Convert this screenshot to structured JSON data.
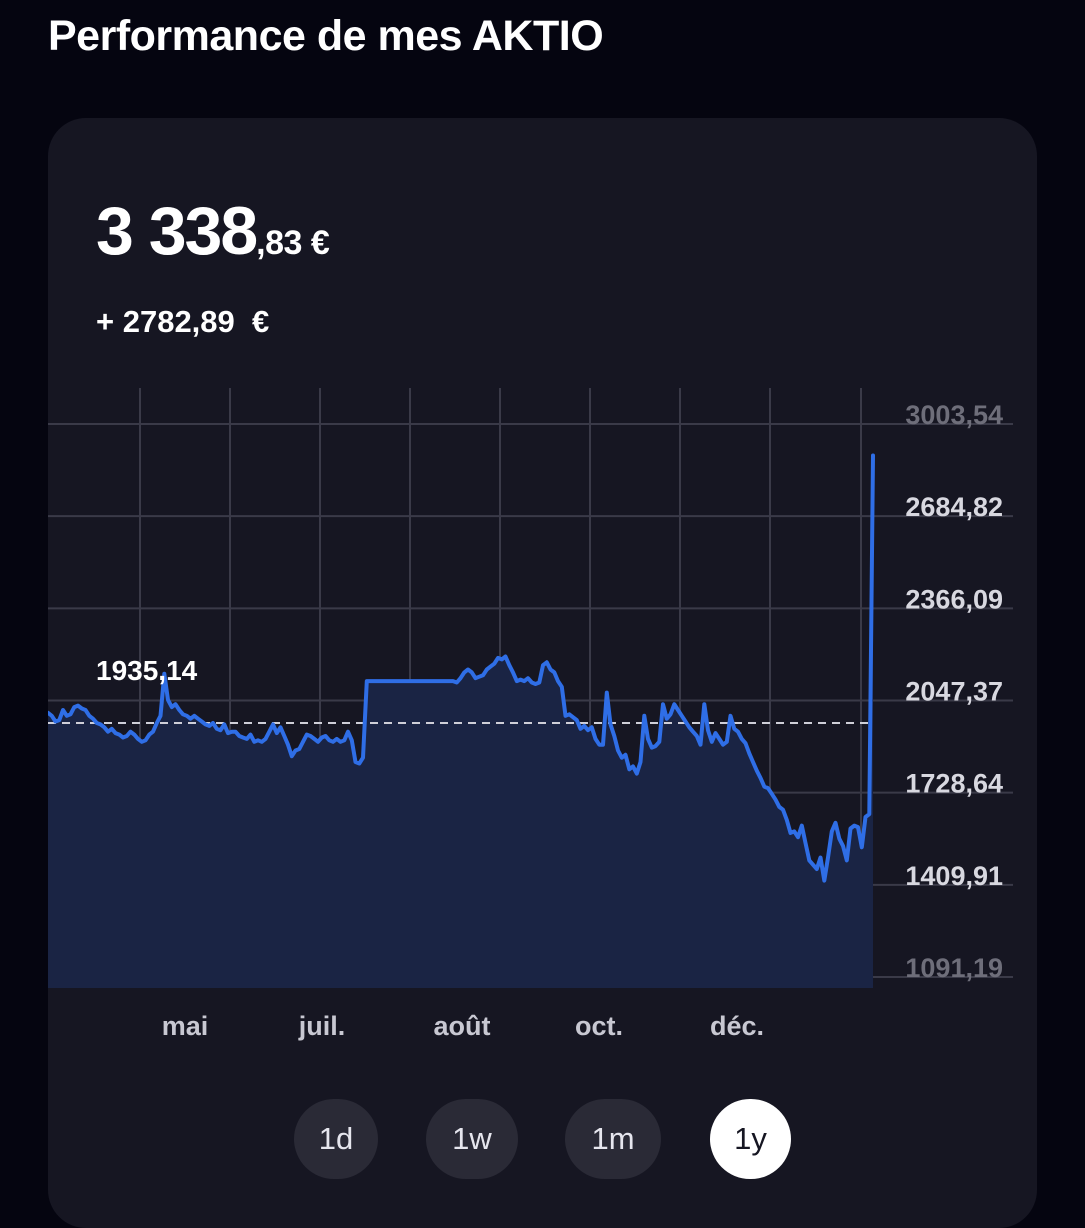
{
  "header": {
    "title": "Performance de mes AKTIO"
  },
  "portfolio": {
    "value_integer": "3 338",
    "value_cents": ",83 €",
    "change": "+ 2782,89  €"
  },
  "colors": {
    "background": "#050510",
    "card": "#161622",
    "line": "#2f6ee6",
    "area": "#1a2444",
    "grid": "#3a3a48",
    "button": "#2a2a36",
    "button_active": "#ffffff"
  },
  "range_buttons": [
    {
      "label": "1d",
      "active": false
    },
    {
      "label": "1w",
      "active": false
    },
    {
      "label": "1m",
      "active": false
    },
    {
      "label": "1y",
      "active": true
    }
  ],
  "chart_data": {
    "type": "area",
    "y_tick_labels": [
      "3003,54",
      "2684,82",
      "2366,09",
      "2047,37",
      "1728,64",
      "1409,91",
      "1091,19"
    ],
    "x_tick_labels": [
      "mai",
      "juil.",
      "août",
      "oct.",
      "déc."
    ],
    "ylim": [
      1091.19,
      3003.54
    ],
    "reference_line": 1935.14,
    "reference_label": "1935,14",
    "grid": true,
    "series": [
      {
        "values": [
          1970,
          1960,
          1940,
          1945,
          1980,
          1960,
          1965,
          1990,
          1995,
          1985,
          1980,
          1960,
          1950,
          1935,
          1930,
          1920,
          1905,
          1915,
          1900,
          1895,
          1885,
          1890,
          1905,
          1895,
          1880,
          1870,
          1875,
          1895,
          1905,
          1935,
          1960,
          2105,
          2015,
          1990,
          2000,
          1980,
          1965,
          1960,
          1950,
          1960,
          1950,
          1940,
          1930,
          1925,
          1935,
          1915,
          1910,
          1930,
          1900,
          1905,
          1905,
          1890,
          1885,
          1880,
          1895,
          1870,
          1875,
          1870,
          1880,
          1905,
          1930,
          1900,
          1920,
          1890,
          1860,
          1820,
          1840,
          1845,
          1870,
          1895,
          1890,
          1880,
          1870,
          1885,
          1890,
          1875,
          1870,
          1880,
          1870,
          1875,
          1905,
          1875,
          1800,
          1795,
          1815,
          2080,
          2080,
          2080,
          2080,
          2080,
          2080,
          2080,
          2080,
          2080,
          2080,
          2080,
          2080,
          2080,
          2080,
          2080,
          2080,
          2080,
          2080,
          2080,
          2080,
          2080,
          2080,
          2080,
          2080,
          2075,
          2090,
          2110,
          2120,
          2110,
          2090,
          2095,
          2100,
          2120,
          2130,
          2140,
          2160,
          2155,
          2165,
          2135,
          2110,
          2080,
          2085,
          2080,
          2090,
          2075,
          2070,
          2075,
          2135,
          2145,
          2120,
          2110,
          2080,
          2060,
          1960,
          1965,
          1955,
          1945,
          1915,
          1925,
          1910,
          1920,
          1880,
          1860,
          1860,
          2040,
          1930,
          1890,
          1840,
          1815,
          1825,
          1775,
          1785,
          1760,
          1800,
          1960,
          1880,
          1850,
          1855,
          1870,
          2000,
          1950,
          1965,
          2000,
          1980,
          1960,
          1940,
          1920,
          1905,
          1890,
          1860,
          2000,
          1910,
          1870,
          1900,
          1880,
          1860,
          1870,
          1960,
          1915,
          1905,
          1880,
          1865,
          1830,
          1800,
          1770,
          1745,
          1715,
          1710,
          1690,
          1670,
          1645,
          1635,
          1600,
          1555,
          1560,
          1540,
          1580,
          1520,
          1460,
          1445,
          1430,
          1470,
          1390,
          1470,
          1560,
          1590,
          1535,
          1510,
          1460,
          1570,
          1580,
          1575,
          1505,
          1610,
          1620,
          2860
        ]
      }
    ]
  }
}
